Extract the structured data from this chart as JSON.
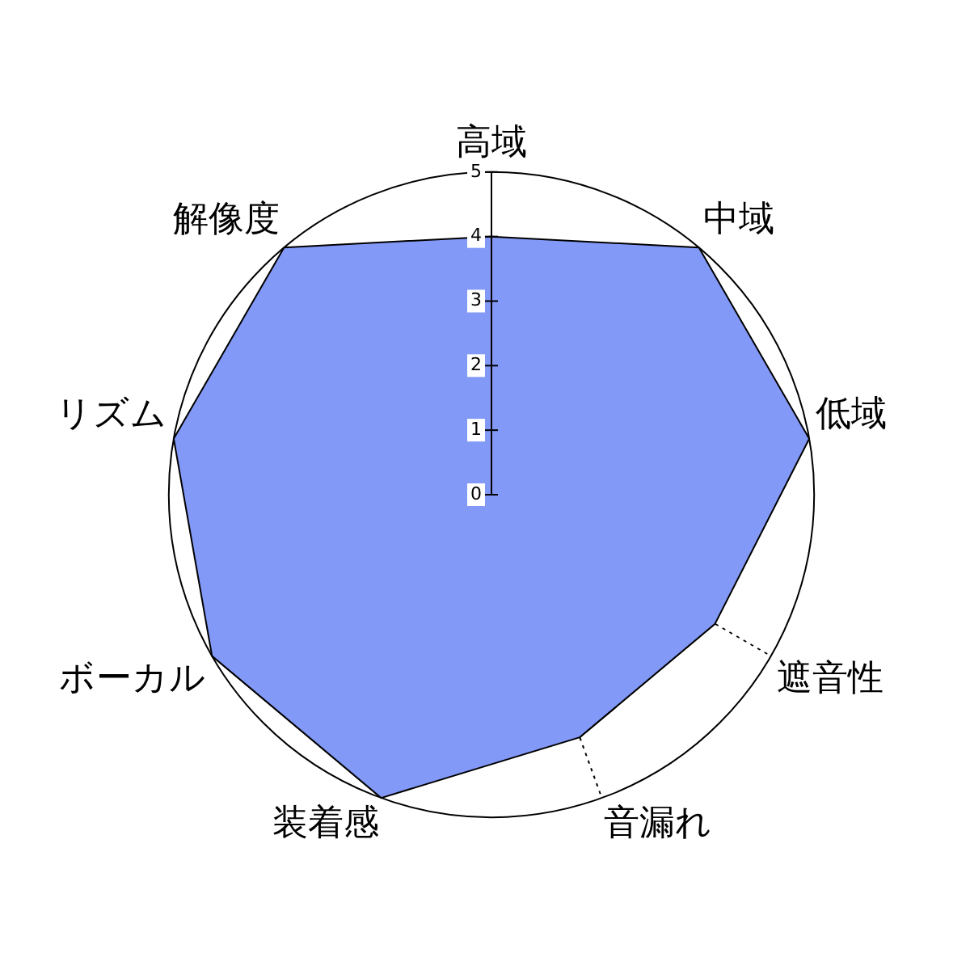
{
  "chart_data": {
    "type": "radar",
    "categories": [
      "高域",
      "中域",
      "低域",
      "遮音性",
      "音漏れ",
      "装着感",
      "ボーカル",
      "リズム",
      "解像度"
    ],
    "series": [
      {
        "color": "#8399f7",
        "values": [
          4,
          5,
          5,
          4,
          4,
          5,
          5,
          5,
          5
        ]
      }
    ],
    "ylim": [
      0,
      5
    ],
    "yticks": [
      0,
      1,
      2,
      3,
      4,
      5
    ],
    "grid": true,
    "legend": false,
    "marker": "none"
  }
}
